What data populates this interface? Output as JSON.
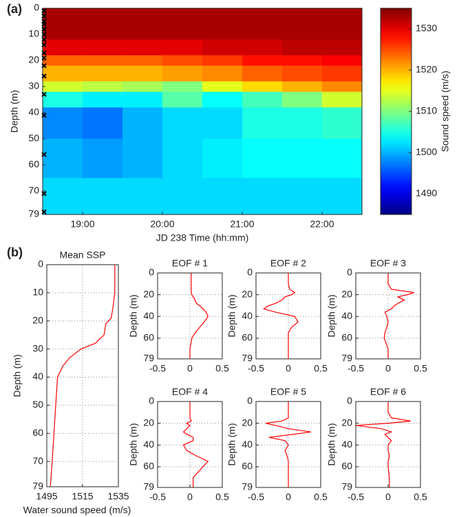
{
  "chart_data": [
    {
      "type": "heatmap",
      "panel_label": "(a)",
      "colormap": "jet",
      "xlabel": "JD 238 Time (hh:mm)",
      "ylabel": "Depth (m)",
      "colorbar_label": "Sound speed (m/s)",
      "xlim": [
        18.5,
        22.5
      ],
      "ylim": [
        0,
        79
      ],
      "y_reversed": true,
      "xticks": [
        {
          "value": 19,
          "label": "19:00"
        },
        {
          "value": 20,
          "label": "20:00"
        },
        {
          "value": 21,
          "label": "21:00"
        },
        {
          "value": 22,
          "label": "22:00"
        }
      ],
      "yticks": [
        0,
        10,
        20,
        30,
        40,
        50,
        60,
        70,
        79
      ],
      "zlim": [
        1485,
        1535
      ],
      "zticks": [
        1490,
        1500,
        1510,
        1520,
        1530
      ],
      "x_edges": [
        18.5,
        19,
        19.5,
        20,
        20.5,
        21,
        21.5,
        22,
        22.5
      ],
      "y_edges": [
        0,
        12,
        18,
        22,
        28,
        32,
        38,
        50,
        65,
        79
      ],
      "z": [
        [
          1533,
          1533,
          1533,
          1533,
          1533,
          1533,
          1533,
          1533
        ],
        [
          1530,
          1530,
          1530,
          1530,
          1531,
          1531,
          1532,
          1532
        ],
        [
          1524,
          1524,
          1524,
          1525,
          1526,
          1528,
          1528,
          1529
        ],
        [
          1520,
          1520,
          1520,
          1521,
          1522,
          1524,
          1525,
          1526
        ],
        [
          1514,
          1513,
          1512,
          1510,
          1515,
          1518,
          1520,
          1522
        ],
        [
          1505,
          1503,
          1503,
          1508,
          1504,
          1507,
          1510,
          1514
        ],
        [
          1498,
          1497,
          1500,
          1502,
          1502,
          1505,
          1505,
          1506
        ],
        [
          1500,
          1499,
          1500,
          1502,
          1503,
          1504,
          1504,
          1504
        ],
        [
          1502,
          1502,
          1502,
          1502,
          1502,
          1502,
          1502,
          1502
        ]
      ],
      "marker_depths": [
        1,
        3,
        5,
        6,
        8,
        10,
        12,
        14,
        17,
        19,
        22,
        26,
        33,
        41,
        56,
        71,
        78
      ]
    },
    {
      "type": "profile",
      "panel_label": "(b)",
      "title": "Mean SSP",
      "color": "#ff0000",
      "grid": true,
      "xlabel": "Water sound speed (m/s)",
      "ylabel": "Depth (m)",
      "xlim": [
        1495,
        1535
      ],
      "xticks": [
        1495,
        1515,
        1535
      ],
      "ylim": [
        0,
        79
      ],
      "y_reversed": true,
      "yticks": [
        0,
        10,
        20,
        30,
        40,
        50,
        60,
        70,
        79
      ],
      "y": [
        0,
        10,
        15,
        19,
        21,
        25,
        28,
        30,
        33,
        36,
        40,
        50,
        60,
        70,
        79
      ],
      "values": [
        1533,
        1533,
        1532,
        1531,
        1528,
        1527,
        1522,
        1514,
        1508,
        1504,
        1501,
        1500,
        1499,
        1498,
        1497
      ]
    },
    {
      "type": "profile",
      "title": "EOF # 1",
      "color": "#ff0000",
      "grid": true,
      "ylabel": "Depth (m)",
      "xlim": [
        -0.5,
        0.5
      ],
      "xticks": [
        -0.5,
        0,
        0.5
      ],
      "ylim": [
        0,
        79
      ],
      "y_reversed": true,
      "yticks": [
        0,
        20,
        40,
        60,
        79
      ],
      "y": [
        0,
        10,
        15,
        18,
        20,
        22,
        25,
        28,
        30,
        33,
        36,
        40,
        45,
        50,
        55,
        60,
        70,
        79
      ],
      "values": [
        0.02,
        0.02,
        0.02,
        0.02,
        0.03,
        0.05,
        0.08,
        0.1,
        0.15,
        0.2,
        0.25,
        0.28,
        0.22,
        0.15,
        0.08,
        0.03,
        0,
        0
      ]
    },
    {
      "type": "profile",
      "title": "EOF # 2",
      "color": "#ff0000",
      "grid": true,
      "ylabel": "Depth (m)",
      "xlim": [
        -0.5,
        0.5
      ],
      "xticks": [
        -0.5,
        0,
        0.5
      ],
      "ylim": [
        0,
        79
      ],
      "y_reversed": true,
      "yticks": [
        0,
        20,
        40,
        60,
        79
      ],
      "y": [
        0,
        10,
        15,
        18,
        20,
        22,
        25,
        28,
        30,
        33,
        36,
        40,
        45,
        50,
        55,
        60,
        70,
        79
      ],
      "values": [
        0,
        0,
        0.02,
        0.1,
        0.05,
        -0.05,
        -0.1,
        -0.2,
        -0.3,
        -0.38,
        -0.2,
        0.1,
        0.15,
        0.05,
        0,
        0,
        0,
        0
      ]
    },
    {
      "type": "profile",
      "title": "EOF # 3",
      "color": "#ff0000",
      "grid": true,
      "ylabel": "Depth (m)",
      "xlim": [
        -0.5,
        0.5
      ],
      "xticks": [
        -0.5,
        0,
        0.5
      ],
      "ylim": [
        0,
        79
      ],
      "y_reversed": true,
      "yticks": [
        0,
        20,
        40,
        60,
        79
      ],
      "y": [
        0,
        10,
        15,
        18,
        20,
        22,
        25,
        28,
        30,
        33,
        36,
        40,
        45,
        50,
        55,
        60,
        70,
        79
      ],
      "values": [
        0,
        0,
        0.05,
        0.4,
        0.3,
        0.15,
        0.25,
        0.15,
        0.1,
        0.05,
        -0.05,
        -0.02,
        0,
        -0.02,
        -0.05,
        -0.06,
        0,
        0
      ]
    },
    {
      "type": "profile",
      "title": "EOF # 4",
      "color": "#ff0000",
      "grid": true,
      "ylabel": "Depth (m)",
      "xlim": [
        -0.5,
        0.5
      ],
      "xticks": [
        -0.5,
        0,
        0.5
      ],
      "ylim": [
        0,
        79
      ],
      "y_reversed": true,
      "yticks": [
        0,
        20,
        40,
        60,
        79
      ],
      "y": [
        0,
        10,
        15,
        18,
        20,
        22,
        25,
        28,
        30,
        33,
        36,
        40,
        45,
        50,
        55,
        60,
        70,
        79
      ],
      "values": [
        0,
        0,
        0,
        0.02,
        -0.05,
        0,
        -0.05,
        -0.1,
        -0.05,
        0.05,
        0.05,
        -0.1,
        -0.05,
        0.1,
        0.28,
        0.2,
        0.05,
        0.05
      ]
    },
    {
      "type": "profile",
      "title": "EOF # 5",
      "color": "#ff0000",
      "grid": true,
      "ylabel": "Depth (m)",
      "xlim": [
        -0.5,
        0.5
      ],
      "xticks": [
        -0.5,
        0,
        0.5
      ],
      "ylim": [
        0,
        79
      ],
      "y_reversed": true,
      "yticks": [
        0,
        20,
        40,
        60,
        79
      ],
      "y": [
        0,
        10,
        15,
        18,
        20,
        22,
        25,
        28,
        30,
        33,
        36,
        40,
        45,
        50,
        55,
        60,
        70,
        79
      ],
      "values": [
        0,
        0,
        0,
        -0.1,
        -0.35,
        -0.2,
        0,
        0.35,
        0.1,
        -0.3,
        -0.05,
        0,
        -0.05,
        -0.02,
        0,
        0,
        0,
        0
      ]
    },
    {
      "type": "profile",
      "title": "EOF # 6",
      "color": "#ff0000",
      "grid": true,
      "ylabel": "Depth (m)",
      "xlim": [
        -0.5,
        0.5
      ],
      "xticks": [
        -0.5,
        0,
        0.5
      ],
      "ylim": [
        0,
        79
      ],
      "y_reversed": true,
      "yticks": [
        0,
        20,
        40,
        60,
        79
      ],
      "y": [
        0,
        10,
        15,
        18,
        20,
        22,
        25,
        28,
        30,
        33,
        36,
        40,
        45,
        50,
        55,
        60,
        70,
        79
      ],
      "values": [
        0,
        0,
        0.05,
        0.35,
        0,
        -0.5,
        -0.1,
        0.05,
        -0.05,
        0,
        0.05,
        0,
        0,
        0.02,
        0,
        0,
        0.02,
        0.02
      ]
    }
  ]
}
